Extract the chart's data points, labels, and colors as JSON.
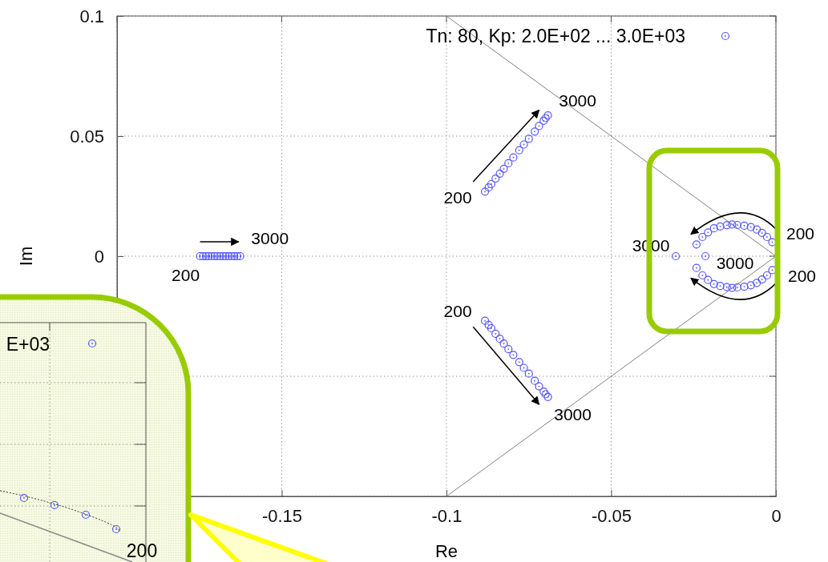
{
  "chart_data": [
    {
      "type": "scatter",
      "xlabel": "Re",
      "ylabel": "Im",
      "xlim": [
        -0.2,
        0
      ],
      "ylim": [
        -0.1,
        0.1
      ],
      "xticks": [
        {
          "value": -0.2,
          "label": null
        },
        -0.15,
        -0.1,
        -0.05,
        0
      ],
      "yticks": [
        {
          "value": -0.1,
          "label": null
        },
        {
          "value": -0.05,
          "label": null
        },
        0,
        0.05,
        0.1
      ],
      "grid": true,
      "legend": "top right",
      "series": [
        {
          "name": "Tn: 80, Kp: 2.0E+02 ... 3.0E+03",
          "color": "#5555ff",
          "marker": "circle",
          "x": [
            -0.1748,
            -0.1739,
            -0.173,
            -0.1722,
            -0.1713,
            -0.1704,
            -0.1696,
            -0.1687,
            -0.1678,
            -0.167,
            -0.1661,
            -0.1652,
            -0.1644,
            -0.1635,
            -0.1626,
            -0.0883,
            -0.0872,
            -0.0864,
            -0.0851,
            -0.0838,
            -0.0826,
            -0.0812,
            -0.0797,
            -0.0779,
            -0.0765,
            -0.075,
            -0.0732,
            -0.0719,
            -0.0705,
            -0.0699,
            -0.0692,
            -0.0883,
            -0.0872,
            -0.0864,
            -0.0851,
            -0.0838,
            -0.0826,
            -0.0812,
            -0.0797,
            -0.0779,
            -0.0765,
            -0.075,
            -0.0732,
            -0.0719,
            -0.0705,
            -0.0699,
            -0.0692,
            -0.0011,
            -0.0027,
            -0.0042,
            -0.0058,
            -0.0076,
            -0.0096,
            -0.0117,
            -0.0133,
            -0.0149,
            -0.0169,
            -0.0188,
            -0.0206,
            -0.0223,
            -0.0241,
            -0.0011,
            -0.0027,
            -0.0042,
            -0.0058,
            -0.0076,
            -0.0096,
            -0.0117,
            -0.0133,
            -0.0149,
            -0.0169,
            -0.0188,
            -0.0206,
            -0.0223,
            -0.0241,
            -0.0214,
            -0.0304
          ],
          "values": [
            0,
            0,
            0,
            0,
            0,
            0,
            0,
            0,
            0,
            0,
            0,
            0,
            0,
            0,
            0,
            0.0269,
            0.0286,
            0.03,
            0.0323,
            0.0344,
            0.0364,
            0.0387,
            0.0411,
            0.0441,
            0.0465,
            0.0489,
            0.0519,
            0.0542,
            0.0564,
            0.0575,
            0.0586,
            -0.0269,
            -0.0286,
            -0.03,
            -0.0323,
            -0.0344,
            -0.0364,
            -0.0387,
            -0.0411,
            -0.0441,
            -0.0465,
            -0.0489,
            -0.0519,
            -0.0542,
            -0.0564,
            -0.0575,
            -0.0586,
            0.0058,
            0.008,
            0.0097,
            0.0111,
            0.0121,
            0.0127,
            0.013,
            0.0132,
            0.0129,
            0.0124,
            0.0116,
            0.0099,
            0.008,
            0.0049,
            -0.0058,
            -0.008,
            -0.0097,
            -0.0111,
            -0.0121,
            -0.0127,
            -0.013,
            -0.0132,
            -0.0129,
            -0.0124,
            -0.0116,
            -0.0099,
            -0.008,
            -0.0049,
            0,
            0
          ]
        },
        {
          "type": "line",
          "color": "#808080",
          "x": [
            -0.1,
            0
          ],
          "values": [
            0.1,
            0
          ]
        },
        {
          "type": "line",
          "color": "#808080",
          "x": [
            -0.1,
            0
          ],
          "values": [
            -0.1,
            0
          ]
        }
      ],
      "annotations": [
        {
          "text": "3000",
          "x": -0.1626,
          "y": 0
        },
        {
          "text": "200",
          "x": -0.1748,
          "y": 0
        },
        {
          "text": "200",
          "x": -0.0883,
          "y": 0.0269
        },
        {
          "text": "3000",
          "x": -0.0692,
          "y": 0.0586
        },
        {
          "text": "200",
          "x": -0.0883,
          "y": -0.0269
        },
        {
          "text": "3000",
          "x": -0.0692,
          "y": -0.0586
        },
        {
          "text": "3000",
          "x": -0.0304,
          "y": 0
        },
        {
          "text": "3000",
          "x": -0.0214,
          "y": 0
        },
        {
          "text": "200",
          "x": -0.0011,
          "y": 0.0058
        },
        {
          "text": "200",
          "x": -0.0011,
          "y": -0.0058
        }
      ]
    },
    {
      "type": "other",
      "annotations": [
        "E+03",
        "200"
      ]
    }
  ]
}
